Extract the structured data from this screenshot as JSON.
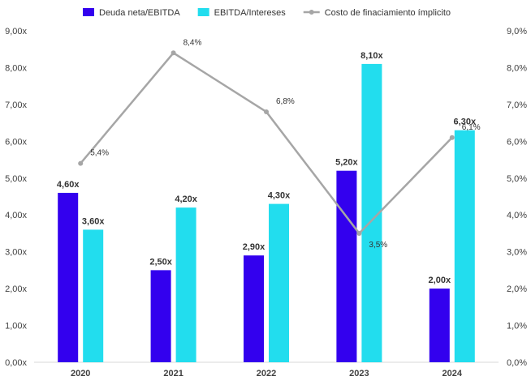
{
  "chart_data": {
    "type": "bar",
    "categories": [
      "2020",
      "2021",
      "2022",
      "2023",
      "2024"
    ],
    "series": [
      {
        "name": "Deuda neta/EBITDA",
        "kind": "bar",
        "axis": "left",
        "color": "#3300EE",
        "values": [
          4.6,
          2.5,
          2.9,
          5.2,
          2.0
        ],
        "labels": [
          "4,60x",
          "2,50x",
          "2,90x",
          "5,20x",
          "2,00x"
        ]
      },
      {
        "name": "EBITDA/Intereses",
        "kind": "bar",
        "axis": "left",
        "color": "#22DDEE",
        "values": [
          3.6,
          4.2,
          4.3,
          8.1,
          6.3
        ],
        "labels": [
          "3,60x",
          "4,20x",
          "4,30x",
          "8,10x",
          "6,30x"
        ]
      },
      {
        "name": "Costo de finaciamiento ímplicito",
        "kind": "line",
        "axis": "right",
        "color": "#A6A6A6",
        "values": [
          5.4,
          8.4,
          6.8,
          3.5,
          6.1
        ],
        "labels": [
          "5,4%",
          "8,4%",
          "6,8%",
          "3,5%",
          "6,1%"
        ]
      }
    ],
    "y_left": {
      "ylim": [
        0,
        9
      ],
      "ticks": [
        0,
        1,
        2,
        3,
        4,
        5,
        6,
        7,
        8,
        9
      ],
      "tick_labels": [
        "0,00x",
        "1,00x",
        "2,00x",
        "3,00x",
        "4,00x",
        "5,00x",
        "6,00x",
        "7,00x",
        "8,00x",
        "9,00x"
      ]
    },
    "y_right": {
      "ylim": [
        0,
        9
      ],
      "ticks": [
        0,
        1,
        2,
        3,
        4,
        5,
        6,
        7,
        8,
        9
      ],
      "tick_labels": [
        "0,0%",
        "1,0%",
        "2,0%",
        "3,0%",
        "4,0%",
        "5,0%",
        "6,0%",
        "7,0%",
        "8,0%",
        "9,0%"
      ]
    },
    "grid": false,
    "legend_position": "top"
  }
}
